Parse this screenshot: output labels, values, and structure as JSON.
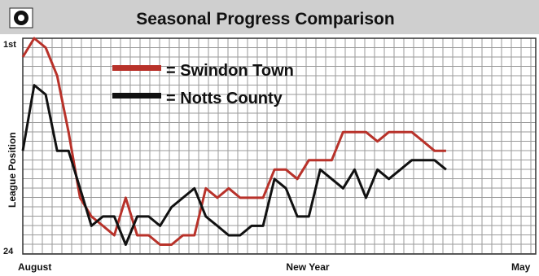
{
  "chart_data": {
    "type": "line",
    "title": "Seasonal Progress Comparison",
    "ylabel": "League Position",
    "y_top_label": "1st",
    "y_bottom_label": "24",
    "x_labels": [
      "August",
      "New Year",
      "May"
    ],
    "ylim": [
      24,
      1
    ],
    "colors": {
      "title_bar": "#cfcfcf",
      "grid": "#9a9a9a",
      "swindon": "#b8322a",
      "notts": "#111111"
    },
    "series": [
      {
        "name": "Swindon Town",
        "color": "#b8322a",
        "values": [
          3,
          1,
          2,
          5,
          11,
          18,
          20,
          21,
          22,
          18,
          22,
          22,
          23,
          23,
          22,
          22,
          17,
          18,
          17,
          18,
          18,
          18,
          15,
          15,
          16,
          14,
          14,
          14,
          11,
          11,
          11,
          12,
          11,
          11,
          11,
          12,
          13,
          13
        ]
      },
      {
        "name": "Notts County",
        "color": "#111111",
        "values": [
          13,
          6,
          7,
          13,
          13,
          17,
          21,
          20,
          20,
          23,
          20,
          20,
          21,
          19,
          18,
          17,
          20,
          21,
          22,
          22,
          21,
          21,
          16,
          17,
          20,
          20,
          15,
          16,
          17,
          15,
          18,
          15,
          16,
          15,
          14,
          14,
          14,
          15
        ]
      }
    ]
  }
}
